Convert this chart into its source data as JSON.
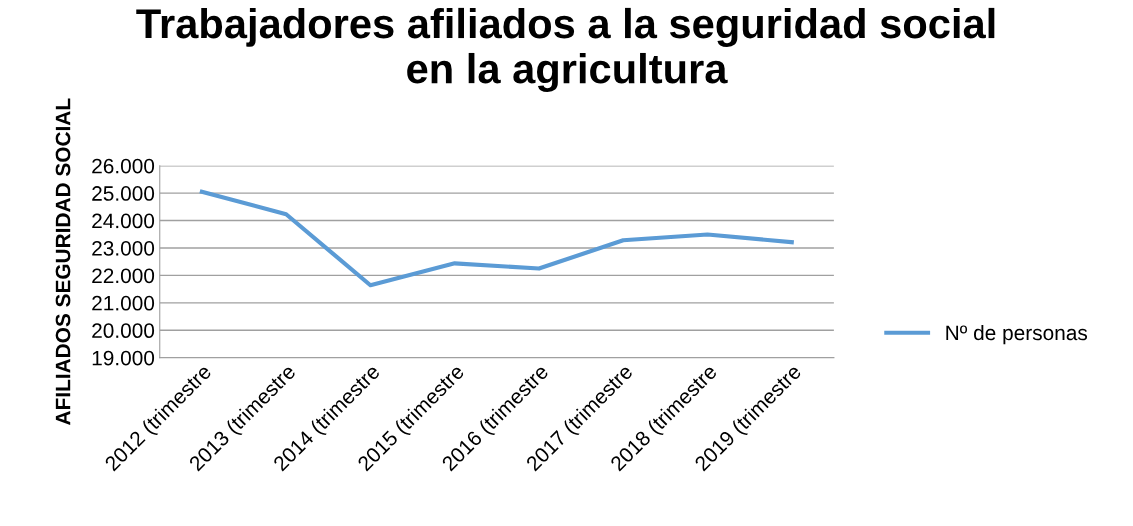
{
  "chart_data": {
    "type": "line",
    "title": "Trabajadores afiliados a la seguridad social\nen la agricultura",
    "ylabel": "AFILIADOS SEGURIDAD SOCIAL",
    "categories": [
      "2012 (trimestre",
      "2013 (trimestre",
      "2014 (trimestre",
      "2015 (trimestre",
      "2016 (trimestre",
      "2017 (trimestre",
      "2018 (trimestre",
      "2019 (trimestre"
    ],
    "series": [
      {
        "name": "Nº de personas",
        "color": "#5b9bd5",
        "values": [
          25050,
          24230,
          21640,
          22440,
          22250,
          23280,
          23490,
          23210
        ]
      }
    ],
    "ylim": [
      19000,
      26000
    ],
    "yticks": [
      {
        "value": 19000,
        "label": "19.000"
      },
      {
        "value": 20000,
        "label": "20.000"
      },
      {
        "value": 21000,
        "label": "21.000"
      },
      {
        "value": 22000,
        "label": "22.000"
      },
      {
        "value": 23000,
        "label": "23.000"
      },
      {
        "value": 24000,
        "label": "24.000"
      },
      {
        "value": 25000,
        "label": "25.000"
      },
      {
        "value": 26000,
        "label": "26.000"
      }
    ],
    "grid": "y",
    "legend": "right",
    "marker": "none",
    "line_style": "solid"
  }
}
